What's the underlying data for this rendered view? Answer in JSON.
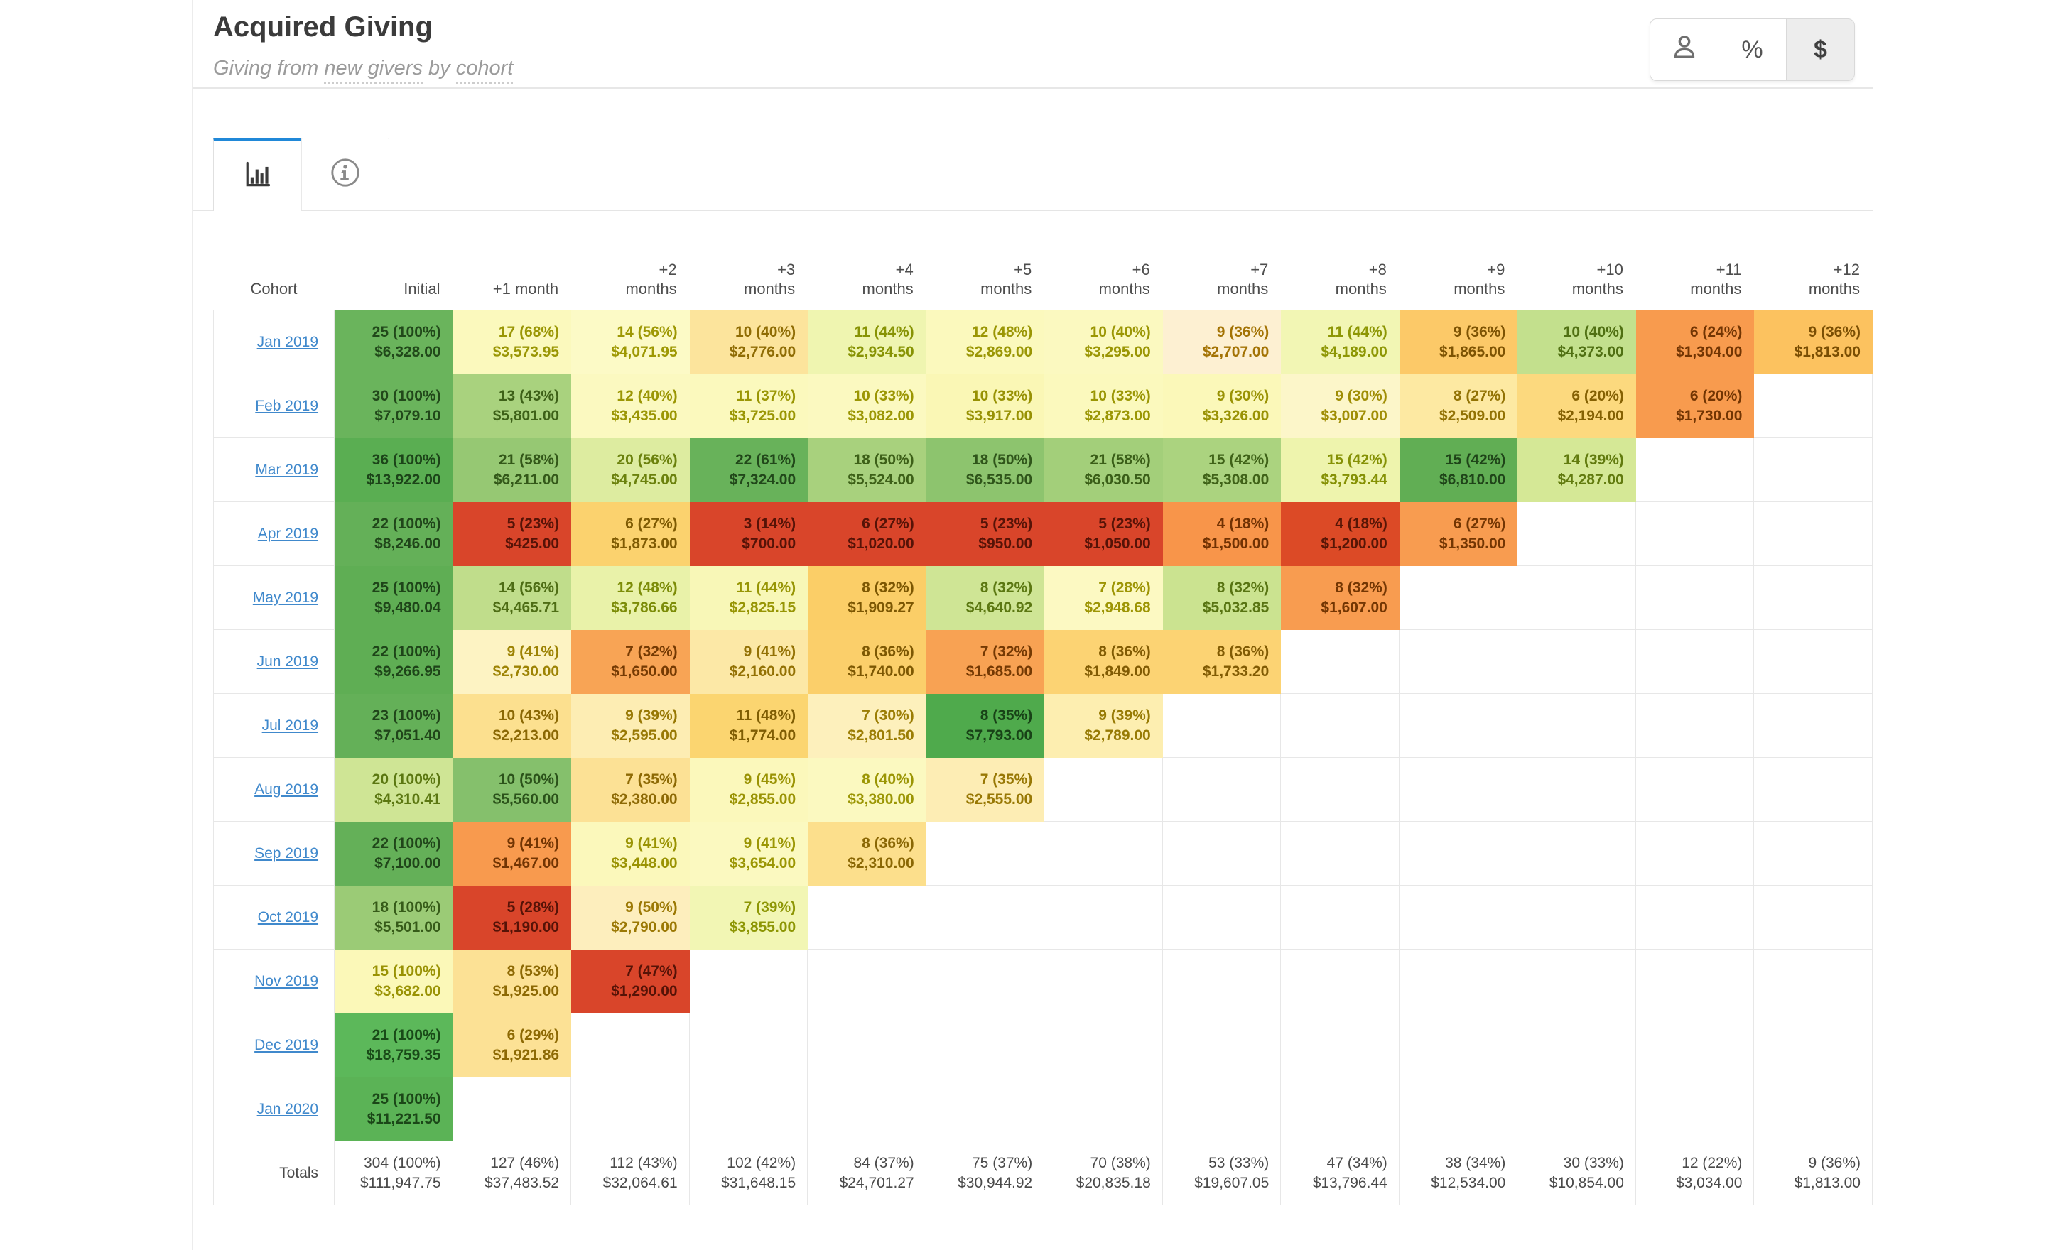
{
  "header": {
    "title": "Acquired Giving",
    "subtitle": {
      "prefix": "Giving from ",
      "term1": "new givers",
      "mid": " by ",
      "term2": "cohort"
    },
    "buttons": [
      {
        "id": "donors",
        "icon": "person-icon",
        "active": false
      },
      {
        "id": "percent",
        "label": "%",
        "active": false
      },
      {
        "id": "dollars",
        "label": "$",
        "active": true
      }
    ]
  },
  "tabs": [
    {
      "id": "chart",
      "icon": "bar-chart-icon",
      "active": true
    },
    {
      "id": "info",
      "icon": "info-icon",
      "active": false
    }
  ],
  "colors": {
    "accent_blue": "#2088d8",
    "link_blue": "#4089cc",
    "grid_border": "#e7e7e7",
    "active_button_bg": "#ededed",
    "heatmap_red": "#d9452a",
    "heatmap_green": "#5aae52"
  },
  "table": {
    "columns": [
      "Cohort",
      "Initial",
      "+1 month",
      "+2\nmonths",
      "+3\nmonths",
      "+4\nmonths",
      "+5\nmonths",
      "+6\nmonths",
      "+7\nmonths",
      "+8\nmonths",
      "+9\nmonths",
      "+10\nmonths",
      "+11\nmonths",
      "+12\nmonths"
    ],
    "rows": [
      {
        "cohort": "Jan 2019",
        "cells": [
          {
            "count": "25 (100%)",
            "amount": "$6,328.00",
            "bg": "#6ab45c"
          },
          {
            "count": "17 (68%)",
            "amount": "$3,573.95",
            "bg": "#fbf9bd"
          },
          {
            "count": "14 (56%)",
            "amount": "$4,071.95",
            "bg": "#fcfac6"
          },
          {
            "count": "10 (40%)",
            "amount": "$2,776.00",
            "bg": "#fce49c"
          },
          {
            "count": "11 (44%)",
            "amount": "$2,934.50",
            "bg": "#eff5b0"
          },
          {
            "count": "12 (48%)",
            "amount": "$2,869.00",
            "bg": "#fbf9bd"
          },
          {
            "count": "10 (40%)",
            "amount": "$3,295.00",
            "bg": "#fbf9c0"
          },
          {
            "count": "9 (36%)",
            "amount": "$2,707.00",
            "bg": "#fdf0d2"
          },
          {
            "count": "11 (44%)",
            "amount": "$4,189.00",
            "bg": "#f2f6b4"
          },
          {
            "count": "9 (36%)",
            "amount": "$1,865.00",
            "bg": "#fcc968"
          },
          {
            "count": "10 (40%)",
            "amount": "$4,373.00",
            "bg": "#c3e08d"
          },
          {
            "count": "6 (24%)",
            "amount": "$1,304.00",
            "bg": "#f89b4e"
          },
          {
            "count": "9 (36%)",
            "amount": "$1,813.00",
            "bg": "#fcc25f"
          }
        ]
      },
      {
        "cohort": "Feb 2019",
        "cells": [
          {
            "count": "30 (100%)",
            "amount": "$7,079.10",
            "bg": "#6ab45c"
          },
          {
            "count": "13 (43%)",
            "amount": "$5,801.00",
            "bg": "#a9d27e"
          },
          {
            "count": "12 (40%)",
            "amount": "$3,435.00",
            "bg": "#fbf9c0"
          },
          {
            "count": "11 (37%)",
            "amount": "$3,725.00",
            "bg": "#fbf9bd"
          },
          {
            "count": "10 (33%)",
            "amount": "$3,082.00",
            "bg": "#fbf9c0"
          },
          {
            "count": "10 (33%)",
            "amount": "$3,917.00",
            "bg": "#faf7b5"
          },
          {
            "count": "10 (33%)",
            "amount": "$2,873.00",
            "bg": "#fbf9bd"
          },
          {
            "count": "9 (30%)",
            "amount": "$3,326.00",
            "bg": "#fbf8b9"
          },
          {
            "count": "9 (30%)",
            "amount": "$3,007.00",
            "bg": "#fcf6c9"
          },
          {
            "count": "8 (27%)",
            "amount": "$2,509.00",
            "bg": "#fde9a2"
          },
          {
            "count": "6 (20%)",
            "amount": "$2,194.00",
            "bg": "#fcd97e"
          },
          {
            "count": "6 (20%)",
            "amount": "$1,730.00",
            "bg": "#f89b4e"
          },
          null
        ]
      },
      {
        "cohort": "Mar 2019",
        "cells": [
          {
            "count": "36 (100%)",
            "amount": "$13,922.00",
            "bg": "#5aae52"
          },
          {
            "count": "21 (58%)",
            "amount": "$6,211.00",
            "bg": "#96c873"
          },
          {
            "count": "20 (56%)",
            "amount": "$4,745.00",
            "bg": "#ddeca0"
          },
          {
            "count": "22 (61%)",
            "amount": "$7,324.00",
            "bg": "#68b25a"
          },
          {
            "count": "18 (50%)",
            "amount": "$5,524.00",
            "bg": "#a8d17d"
          },
          {
            "count": "18 (50%)",
            "amount": "$6,535.00",
            "bg": "#8dc46e"
          },
          {
            "count": "21 (58%)",
            "amount": "$6,030.50",
            "bg": "#a3cf7a"
          },
          {
            "count": "15 (42%)",
            "amount": "$5,308.00",
            "bg": "#abd37f"
          },
          {
            "count": "15 (42%)",
            "amount": "$3,793.44",
            "bg": "#eef4ad"
          },
          {
            "count": "15 (42%)",
            "amount": "$6,810.00",
            "bg": "#61ae54"
          },
          {
            "count": "14 (39%)",
            "amount": "$4,287.00",
            "bg": "#d5e896"
          },
          null,
          null
        ]
      },
      {
        "cohort": "Apr 2019",
        "cells": [
          {
            "count": "22 (100%)",
            "amount": "$8,246.00",
            "bg": "#64b058"
          },
          {
            "count": "5 (23%)",
            "amount": "$425.00",
            "bg": "#d9452a"
          },
          {
            "count": "6 (27%)",
            "amount": "$1,873.00",
            "bg": "#fbd26e"
          },
          {
            "count": "3 (14%)",
            "amount": "$700.00",
            "bg": "#d9452a"
          },
          {
            "count": "6 (27%)",
            "amount": "$1,020.00",
            "bg": "#d9452a"
          },
          {
            "count": "5 (23%)",
            "amount": "$950.00",
            "bg": "#d9452a"
          },
          {
            "count": "5 (23%)",
            "amount": "$1,050.00",
            "bg": "#d9452a"
          },
          {
            "count": "4 (18%)",
            "amount": "$1,500.00",
            "bg": "#f8954a"
          },
          {
            "count": "4 (18%)",
            "amount": "$1,200.00",
            "bg": "#dc4a26"
          },
          {
            "count": "6 (27%)",
            "amount": "$1,350.00",
            "bg": "#f89c50"
          },
          null,
          null,
          null
        ]
      },
      {
        "cohort": "May 2019",
        "cells": [
          {
            "count": "25 (100%)",
            "amount": "$9,480.04",
            "bg": "#5fae54"
          },
          {
            "count": "14 (56%)",
            "amount": "$4,465.71",
            "bg": "#c0dd8b"
          },
          {
            "count": "12 (48%)",
            "amount": "$3,786.66",
            "bg": "#e9f2a9"
          },
          {
            "count": "11 (44%)",
            "amount": "$2,825.15",
            "bg": "#f8f7b7"
          },
          {
            "count": "8 (32%)",
            "amount": "$1,909.27",
            "bg": "#fbce67"
          },
          {
            "count": "8 (32%)",
            "amount": "$4,640.92",
            "bg": "#cfe595"
          },
          {
            "count": "7 (28%)",
            "amount": "$2,948.68",
            "bg": "#fcf9c2"
          },
          {
            "count": "8 (32%)",
            "amount": "$5,032.85",
            "bg": "#cbe390"
          },
          {
            "count": "8 (32%)",
            "amount": "$1,607.00",
            "bg": "#f89c50"
          },
          null,
          null,
          null,
          null
        ]
      },
      {
        "cohort": "Jun 2019",
        "cells": [
          {
            "count": "22 (100%)",
            "amount": "$9,266.95",
            "bg": "#5fae54"
          },
          {
            "count": "9 (41%)",
            "amount": "$2,730.00",
            "bg": "#fdf3c3"
          },
          {
            "count": "7 (32%)",
            "amount": "$1,650.00",
            "bg": "#f8a455"
          },
          {
            "count": "9 (41%)",
            "amount": "$2,160.00",
            "bg": "#fce8a6"
          },
          {
            "count": "8 (36%)",
            "amount": "$1,740.00",
            "bg": "#fbcf6a"
          },
          {
            "count": "7 (32%)",
            "amount": "$1,685.00",
            "bg": "#f8a253"
          },
          {
            "count": "8 (36%)",
            "amount": "$1,849.00",
            "bg": "#fcd373"
          },
          {
            "count": "8 (36%)",
            "amount": "$1,733.20",
            "bg": "#fcd373"
          },
          null,
          null,
          null,
          null,
          null
        ]
      },
      {
        "cohort": "Jul 2019",
        "cells": [
          {
            "count": "23 (100%)",
            "amount": "$7,051.40",
            "bg": "#64b058"
          },
          {
            "count": "10 (43%)",
            "amount": "$2,213.00",
            "bg": "#fce08f"
          },
          {
            "count": "9 (39%)",
            "amount": "$2,595.00",
            "bg": "#fdedb3"
          },
          {
            "count": "11 (48%)",
            "amount": "$1,774.00",
            "bg": "#fbd570"
          },
          {
            "count": "7 (30%)",
            "amount": "$2,801.50",
            "bg": "#fdf0bc"
          },
          {
            "count": "8 (35%)",
            "amount": "$7,793.00",
            "bg": "#4faa4c"
          },
          {
            "count": "9 (39%)",
            "amount": "$2,789.00",
            "bg": "#fdeeb0"
          },
          null,
          null,
          null,
          null,
          null,
          null
        ]
      },
      {
        "cohort": "Aug 2019",
        "cells": [
          {
            "count": "20 (100%)",
            "amount": "$4,310.41",
            "bg": "#cfe595"
          },
          {
            "count": "10 (50%)",
            "amount": "$5,560.00",
            "bg": "#85c06c"
          },
          {
            "count": "7 (35%)",
            "amount": "$2,380.00",
            "bg": "#fce195"
          },
          {
            "count": "9 (45%)",
            "amount": "$2,855.00",
            "bg": "#fbf8bb"
          },
          {
            "count": "8 (40%)",
            "amount": "$3,380.00",
            "bg": "#fbf9c0"
          },
          {
            "count": "7 (35%)",
            "amount": "$2,555.00",
            "bg": "#fdedb4"
          },
          null,
          null,
          null,
          null,
          null,
          null,
          null
        ]
      },
      {
        "cohort": "Sep 2019",
        "cells": [
          {
            "count": "22 (100%)",
            "amount": "$7,100.00",
            "bg": "#64b058"
          },
          {
            "count": "9 (41%)",
            "amount": "$1,467.00",
            "bg": "#f89a4e"
          },
          {
            "count": "9 (41%)",
            "amount": "$3,448.00",
            "bg": "#fbf8bb"
          },
          {
            "count": "9 (41%)",
            "amount": "$3,654.00",
            "bg": "#fbf9c0"
          },
          {
            "count": "8 (36%)",
            "amount": "$2,310.00",
            "bg": "#fcdf8c"
          },
          null,
          null,
          null,
          null,
          null,
          null,
          null,
          null
        ]
      },
      {
        "cohort": "Oct 2019",
        "cells": [
          {
            "count": "18 (100%)",
            "amount": "$5,501.00",
            "bg": "#9bcb76"
          },
          {
            "count": "5 (28%)",
            "amount": "$1,190.00",
            "bg": "#d9452a"
          },
          {
            "count": "9 (50%)",
            "amount": "$2,790.00",
            "bg": "#fdeebd"
          },
          {
            "count": "7 (39%)",
            "amount": "$3,855.00",
            "bg": "#f2f6b4"
          },
          null,
          null,
          null,
          null,
          null,
          null,
          null,
          null,
          null
        ]
      },
      {
        "cohort": "Nov 2019",
        "cells": [
          {
            "count": "15 (100%)",
            "amount": "$3,682.00",
            "bg": "#fbf8b8"
          },
          {
            "count": "8 (53%)",
            "amount": "$1,925.00",
            "bg": "#fce195"
          },
          {
            "count": "7 (47%)",
            "amount": "$1,290.00",
            "bg": "#d9452a"
          },
          null,
          null,
          null,
          null,
          null,
          null,
          null,
          null,
          null,
          null
        ]
      },
      {
        "cohort": "Dec 2019",
        "cells": [
          {
            "count": "21 (100%)",
            "amount": "$18,759.35",
            "bg": "#5cb85a"
          },
          {
            "count": "6 (29%)",
            "amount": "$1,921.86",
            "bg": "#fce195"
          },
          null,
          null,
          null,
          null,
          null,
          null,
          null,
          null,
          null,
          null,
          null
        ]
      },
      {
        "cohort": "Jan 2020",
        "cells": [
          {
            "count": "25 (100%)",
            "amount": "$11,221.50",
            "bg": "#5bb356"
          },
          null,
          null,
          null,
          null,
          null,
          null,
          null,
          null,
          null,
          null,
          null,
          null
        ]
      }
    ],
    "totals": {
      "label": "Totals",
      "cells": [
        {
          "count": "304 (100%)",
          "amount": "$111,947.75"
        },
        {
          "count": "127 (46%)",
          "amount": "$37,483.52"
        },
        {
          "count": "112 (43%)",
          "amount": "$32,064.61"
        },
        {
          "count": "102 (42%)",
          "amount": "$31,648.15"
        },
        {
          "count": "84 (37%)",
          "amount": "$24,701.27"
        },
        {
          "count": "75 (37%)",
          "amount": "$30,944.92"
        },
        {
          "count": "70 (38%)",
          "amount": "$20,835.18"
        },
        {
          "count": "53 (33%)",
          "amount": "$19,607.05"
        },
        {
          "count": "47 (34%)",
          "amount": "$13,796.44"
        },
        {
          "count": "38 (34%)",
          "amount": "$12,534.00"
        },
        {
          "count": "30 (33%)",
          "amount": "$10,854.00"
        },
        {
          "count": "12 (22%)",
          "amount": "$3,034.00"
        },
        {
          "count": "9 (36%)",
          "amount": "$1,813.00"
        }
      ]
    }
  }
}
